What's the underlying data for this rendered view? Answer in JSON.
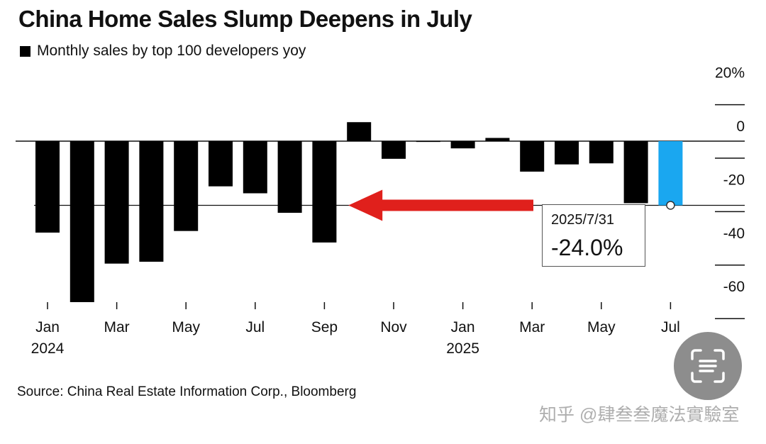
{
  "title": "China Home Sales Slump Deepens in July",
  "legend": {
    "label": "Monthly sales by top 100 developers yoy",
    "color": "#000000"
  },
  "source": "Source: China Real Estate Information Corp., Bloomberg",
  "watermark": "知乎 @肆叁叁魔法實驗室",
  "scan_button": {
    "icon": "text-scan-icon"
  },
  "callout": {
    "date": "2025/7/31",
    "value": "-24.0%"
  },
  "colors": {
    "bar": "#000000",
    "highlight": "#1aa7f0",
    "arrow": "#e0201c"
  },
  "chart_data": {
    "type": "bar",
    "x": [
      "2024-01",
      "2024-02",
      "2024-03",
      "2024-04",
      "2024-05",
      "2024-06",
      "2024-07",
      "2024-08",
      "2024-09",
      "2024-10",
      "2024-11",
      "2024-12",
      "2025-01",
      "2025-02",
      "2025-03",
      "2025-04",
      "2025-05",
      "2025-06",
      "2025-07"
    ],
    "values": [
      -34.2,
      -60.2,
      -45.8,
      -45.1,
      -33.6,
      -16.9,
      -19.5,
      -26.8,
      -37.9,
      7.1,
      -6.6,
      0.1,
      -2.7,
      1.2,
      -11.4,
      -8.7,
      -8.3,
      -23.2,
      -24.0
    ],
    "highlight_index": 18,
    "title": "China Home Sales Slump Deepens in July",
    "ylim": [
      -60,
      20
    ],
    "yticks": [
      20,
      0,
      -20,
      -40,
      -60
    ],
    "ytick_labels": [
      "20%",
      "0",
      "-20",
      "-40",
      "-60"
    ],
    "xtick_labels": [
      {
        "index": 0,
        "label": "Jan",
        "year": "2024"
      },
      {
        "index": 2,
        "label": "Mar",
        "year": ""
      },
      {
        "index": 4,
        "label": "May",
        "year": ""
      },
      {
        "index": 6,
        "label": "Jul",
        "year": ""
      },
      {
        "index": 8,
        "label": "Sep",
        "year": ""
      },
      {
        "index": 10,
        "label": "Nov",
        "year": ""
      },
      {
        "index": 12,
        "label": "Jan",
        "year": "2025"
      },
      {
        "index": 14,
        "label": "Mar",
        "year": ""
      },
      {
        "index": 16,
        "label": "May",
        "year": ""
      },
      {
        "index": 18,
        "label": "Jul",
        "year": ""
      }
    ],
    "reference_line": -24.0,
    "annotation": {
      "target_index": 18,
      "arrow_to_index": 9
    },
    "grid": false,
    "legend_position": "top-left"
  }
}
